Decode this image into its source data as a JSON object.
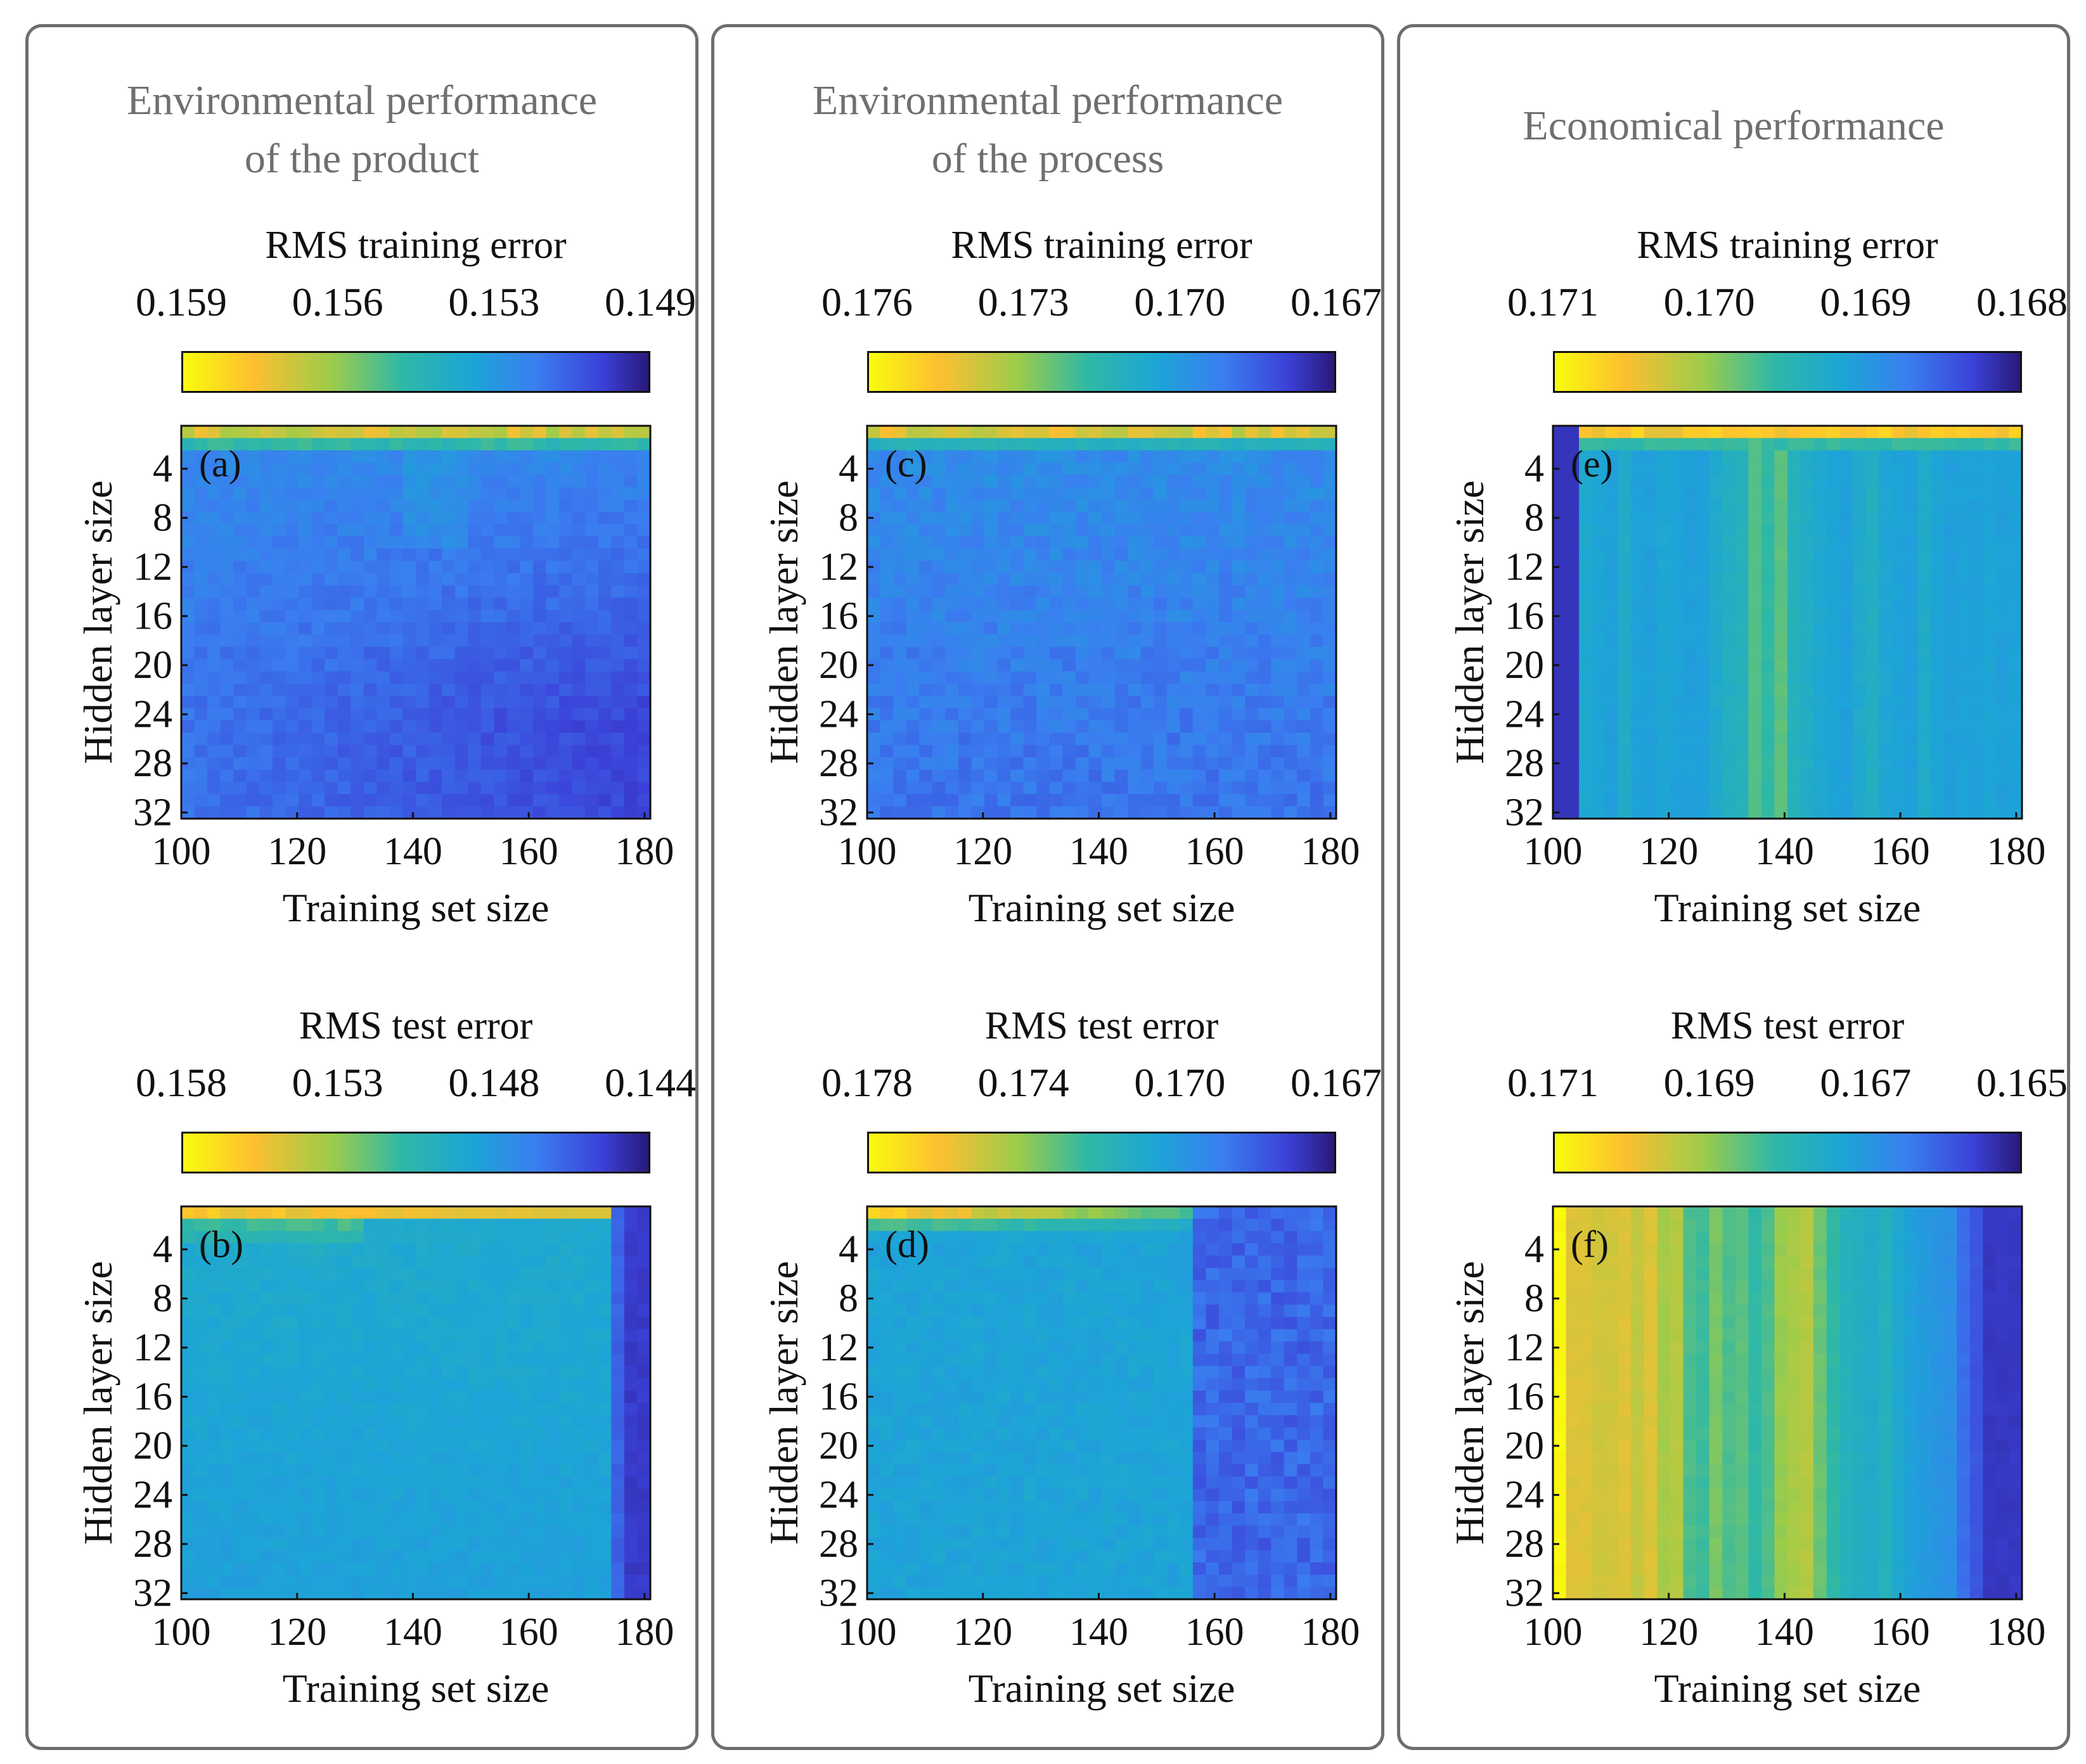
{
  "colors": {
    "frame": "#6e6e6e",
    "title_text": "#6f6f6f",
    "colormap": [
      "#281a7a",
      "#3b41d8",
      "#3a7ef0",
      "#1ca5d6",
      "#2fb8a6",
      "#9ccc4a",
      "#fdbf30",
      "#f9fb0e"
    ]
  },
  "columns": [
    {
      "title_lines": [
        "Environmental performance",
        "of the product"
      ]
    },
    {
      "title_lines": [
        "Environmental performance",
        "of the process"
      ]
    },
    {
      "title_lines": [
        "Economical performance"
      ]
    }
  ],
  "chart_data": [
    {
      "type": "heatmap",
      "id": "a",
      "panel_label": "(a)",
      "metric": "RMS training error",
      "colorbar_ticks": [
        "0.159",
        "0.156",
        "0.153",
        "0.149"
      ],
      "clim": [
        0.149,
        0.159
      ],
      "xlabel": "Training set size",
      "ylabel": "Hidden layer size",
      "xlim": [
        100,
        181
      ],
      "ylim": [
        1,
        32
      ],
      "xticks": [
        100,
        120,
        140,
        160,
        180
      ],
      "yticks": [
        4,
        8,
        12,
        16,
        20,
        24,
        28,
        32
      ],
      "pattern": "product_train"
    },
    {
      "type": "heatmap",
      "id": "b",
      "panel_label": "(b)",
      "metric": "RMS test error",
      "colorbar_ticks": [
        "0.158",
        "0.153",
        "0.148",
        "0.144"
      ],
      "clim": [
        0.144,
        0.158
      ],
      "xlabel": "Training set size",
      "ylabel": "Hidden layer size",
      "xlim": [
        100,
        181
      ],
      "ylim": [
        1,
        32
      ],
      "xticks": [
        100,
        120,
        140,
        160,
        180
      ],
      "yticks": [
        4,
        8,
        12,
        16,
        20,
        24,
        28,
        32
      ],
      "pattern": "product_test"
    },
    {
      "type": "heatmap",
      "id": "c",
      "panel_label": "(c)",
      "metric": "RMS training error",
      "colorbar_ticks": [
        "0.176",
        "0.173",
        "0.170",
        "0.167"
      ],
      "clim": [
        0.167,
        0.176
      ],
      "xlabel": "Training set size",
      "ylabel": "Hidden layer size",
      "xlim": [
        100,
        181
      ],
      "ylim": [
        1,
        32
      ],
      "xticks": [
        100,
        120,
        140,
        160,
        180
      ],
      "yticks": [
        4,
        8,
        12,
        16,
        20,
        24,
        28,
        32
      ],
      "pattern": "process_train"
    },
    {
      "type": "heatmap",
      "id": "d",
      "panel_label": "(d)",
      "metric": "RMS test error",
      "colorbar_ticks": [
        "0.178",
        "0.174",
        "0.170",
        "0.167"
      ],
      "clim": [
        0.167,
        0.178
      ],
      "xlabel": "Training set size",
      "ylabel": "Hidden layer size",
      "xlim": [
        100,
        181
      ],
      "ylim": [
        1,
        32
      ],
      "xticks": [
        100,
        120,
        140,
        160,
        180
      ],
      "yticks": [
        4,
        8,
        12,
        16,
        20,
        24,
        28,
        32
      ],
      "pattern": "process_test"
    },
    {
      "type": "heatmap",
      "id": "e",
      "panel_label": "(e)",
      "metric": "RMS training error",
      "colorbar_ticks": [
        "0.171",
        "0.170",
        "0.169",
        "0.168"
      ],
      "clim": [
        0.168,
        0.171
      ],
      "xlabel": "Training set size",
      "ylabel": "Hidden layer size",
      "xlim": [
        100,
        181
      ],
      "ylim": [
        1,
        32
      ],
      "xticks": [
        100,
        120,
        140,
        160,
        180
      ],
      "yticks": [
        4,
        8,
        12,
        16,
        20,
        24,
        28,
        32
      ],
      "pattern": "econ_train"
    },
    {
      "type": "heatmap",
      "id": "f",
      "panel_label": "(f)",
      "metric": "RMS test error",
      "colorbar_ticks": [
        "0.171",
        "0.169",
        "0.167",
        "0.165"
      ],
      "clim": [
        0.165,
        0.171
      ],
      "xlabel": "Training set size",
      "ylabel": "Hidden layer size",
      "xlim": [
        100,
        181
      ],
      "ylim": [
        1,
        32
      ],
      "xticks": [
        100,
        120,
        140,
        160,
        180
      ],
      "yticks": [
        4,
        8,
        12,
        16,
        20,
        24,
        28,
        32
      ],
      "pattern": "econ_test"
    }
  ]
}
